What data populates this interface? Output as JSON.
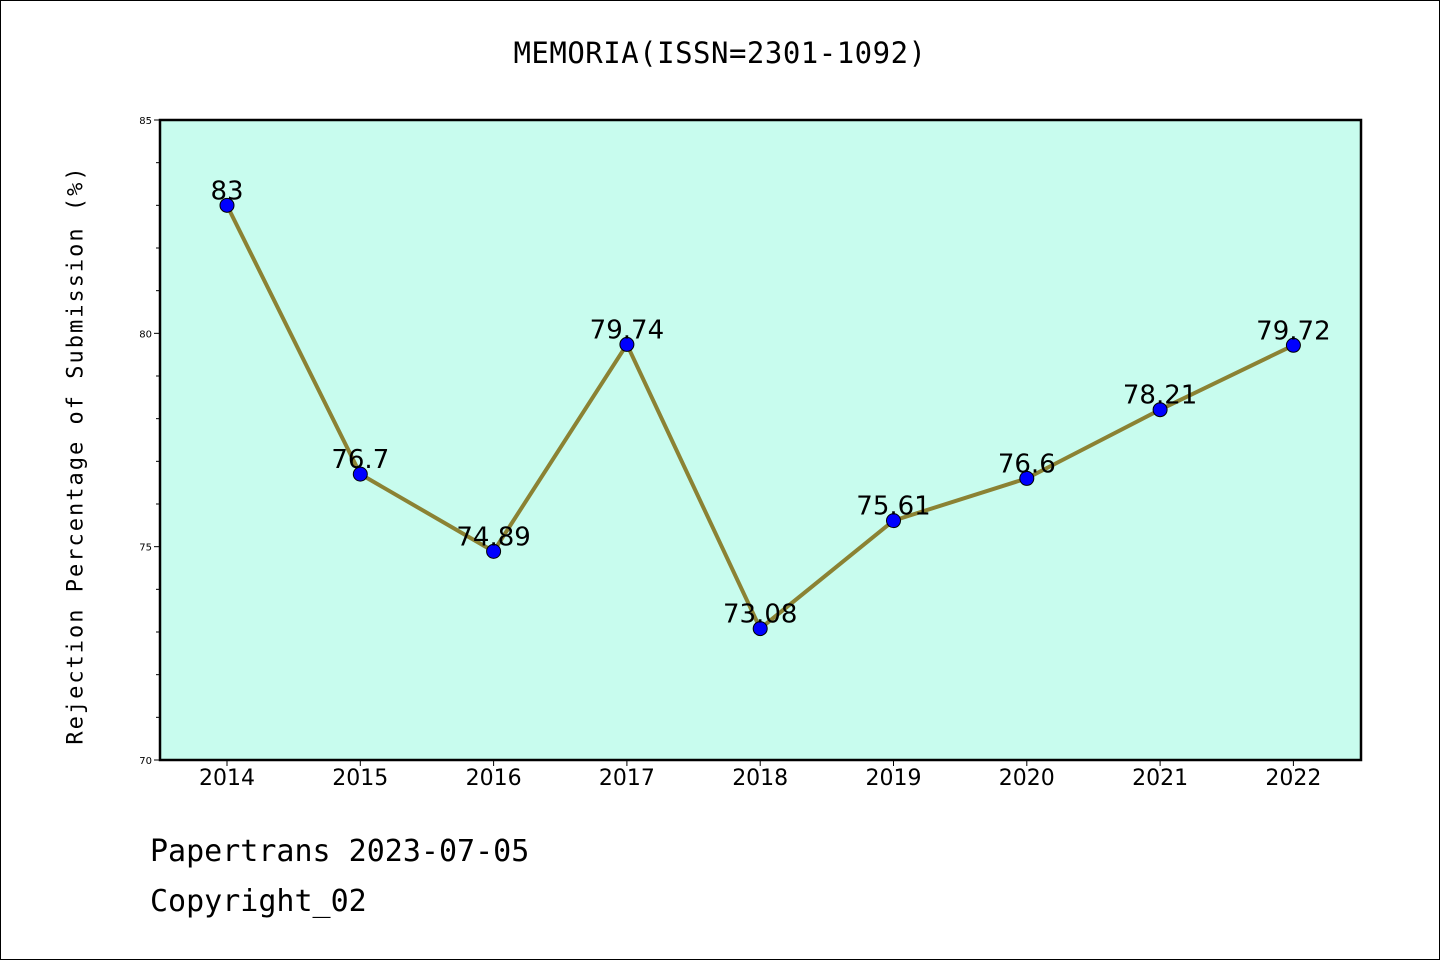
{
  "chart_data": {
    "type": "line",
    "title": "MEMORIA(ISSN=2301-1092)",
    "xlabel": "",
    "ylabel": "Rejection Percentage of Submission (%)",
    "categories": [
      "2014",
      "2015",
      "2016",
      "2017",
      "2018",
      "2019",
      "2020",
      "2021",
      "2022"
    ],
    "series": [
      {
        "values": [
          83,
          76.7,
          74.89,
          79.74,
          73.08,
          75.61,
          76.6,
          78.21,
          79.72
        ]
      }
    ],
    "data_labels": [
      "83",
      "76.7",
      "74.89",
      "79.74",
      "73.08",
      "75.61",
      "76.6",
      "78.21",
      "79.72"
    ],
    "ylim": [
      70,
      85
    ],
    "yticks": [
      "70",
      "75",
      "80",
      "85"
    ],
    "grid": false,
    "colors": {
      "plot_bg": "#c8fcee",
      "line": "#8b8233",
      "marker": "#0000ff"
    }
  },
  "footer": {
    "line1": "Papertrans 2023-07-05",
    "line2": "Copyright_02"
  }
}
